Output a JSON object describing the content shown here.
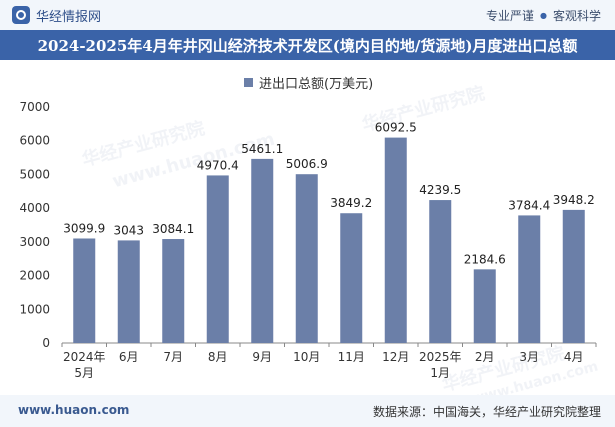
{
  "header": {
    "brand": "华经情报网",
    "tag1": "专业严谨",
    "separator": "●",
    "tag2": "客观科学"
  },
  "watermarks": [
    "华经产业研究院",
    "www.huaon.com",
    "华经产业研究院",
    "华经产业研究院",
    "www.huaon.com"
  ],
  "footer": {
    "website": "www.huaon.com",
    "source": "数据来源：中国海关，华经产业研究院整理"
  },
  "colors": {
    "bar": "#6b7fa8",
    "title_bg": "#3a63a8"
  },
  "chart_data": {
    "type": "bar",
    "title": "2024-2025年4月年井冈山经济技术开发区(境内目的地/货源地)月度进出口总额",
    "legend": "进出口总额(万美元)",
    "categories": [
      [
        "2024年",
        "5月"
      ],
      [
        "6月"
      ],
      [
        "7月"
      ],
      [
        "8月"
      ],
      [
        "9月"
      ],
      [
        "10月"
      ],
      [
        "11月"
      ],
      [
        "12月"
      ],
      [
        "2025年",
        "1月"
      ],
      [
        "2月"
      ],
      [
        "3月"
      ],
      [
        "4月"
      ]
    ],
    "values": [
      3099.9,
      3043,
      3084.1,
      4970.4,
      5461.1,
      5006.9,
      3849.2,
      6092.5,
      4239.5,
      2184.6,
      3784.4,
      3948.2
    ],
    "value_labels": [
      "3099.9",
      "3043",
      "3084.1",
      "4970.4",
      "5461.1",
      "5006.9",
      "3849.2",
      "6092.5",
      "4239.5",
      "2184.6",
      "3784.4",
      "3948.2"
    ],
    "yticks": [
      0,
      1000,
      2000,
      3000,
      4000,
      5000,
      6000,
      7000
    ],
    "ylim": [
      0,
      7000
    ],
    "xlabel": "",
    "ylabel": ""
  }
}
